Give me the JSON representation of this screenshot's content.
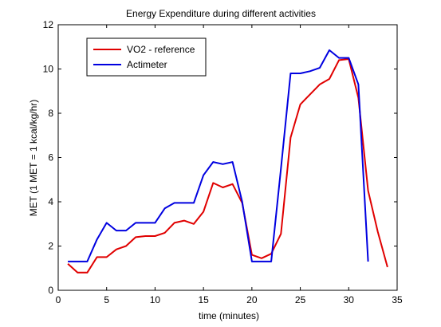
{
  "chart_data": {
    "type": "line",
    "title": "Energy Expenditure during different activities",
    "xlabel": "time (minutes)",
    "ylabel": "MET (1 MET = 1 kcal/kg/hr)",
    "xlim": [
      0,
      35
    ],
    "ylim": [
      0,
      12
    ],
    "xticks": [
      "0",
      "5",
      "10",
      "15",
      "20",
      "25",
      "30",
      "35"
    ],
    "yticks": [
      "0",
      "2",
      "4",
      "6",
      "8",
      "10",
      "12"
    ],
    "grid": false,
    "legend_position": "top-left",
    "series": [
      {
        "name": "VO2 - reference",
        "color": "#e00000",
        "x": [
          1,
          2,
          3,
          4,
          5,
          6,
          7,
          8,
          9,
          10,
          11,
          12,
          13,
          14,
          15,
          16,
          17,
          18,
          19,
          20,
          21,
          22,
          23,
          24,
          25,
          26,
          27,
          28,
          29,
          30,
          31,
          32,
          33,
          34
        ],
        "y": [
          1.2,
          0.8,
          0.8,
          1.5,
          1.5,
          1.85,
          2.0,
          2.4,
          2.45,
          2.45,
          2.6,
          3.05,
          3.15,
          3.0,
          3.55,
          4.85,
          4.65,
          4.8,
          3.95,
          1.6,
          1.45,
          1.65,
          2.55,
          6.9,
          8.4,
          8.85,
          9.3,
          9.55,
          10.4,
          10.45,
          8.7,
          4.5,
          2.65,
          1.05
        ]
      },
      {
        "name": "Actimeter",
        "color": "#0000e0",
        "x": [
          1,
          2,
          3,
          4,
          5,
          6,
          7,
          8,
          9,
          10,
          11,
          12,
          13,
          14,
          15,
          16,
          17,
          18,
          19,
          20,
          21,
          22,
          23,
          24,
          25,
          26,
          27,
          28,
          29,
          30,
          31,
          32
        ],
        "y": [
          1.3,
          1.3,
          1.3,
          2.3,
          3.05,
          2.7,
          2.7,
          3.05,
          3.05,
          3.05,
          3.7,
          3.95,
          3.95,
          3.95,
          5.2,
          5.8,
          5.7,
          5.8,
          4.0,
          1.3,
          1.3,
          1.3,
          5.5,
          9.8,
          9.8,
          9.9,
          10.05,
          10.85,
          10.5,
          10.5,
          9.3,
          1.3
        ]
      }
    ]
  }
}
